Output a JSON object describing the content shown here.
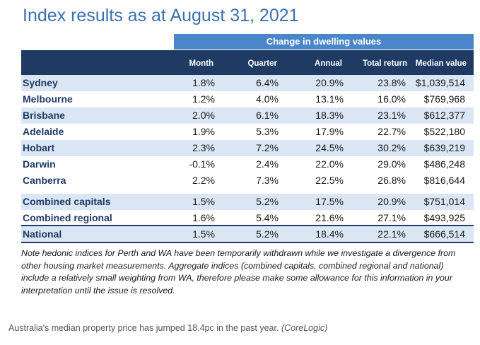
{
  "title": "Index results as at August 31, 2021",
  "group_header": "Change in dwelling values",
  "columns": {
    "month": "Month",
    "quarter": "Quarter",
    "annual": "Annual",
    "total": "Total return",
    "median": "Median value"
  },
  "rows": [
    {
      "name": "Sydney",
      "month": "1.8%",
      "quarter": "6.4%",
      "annual": "20.9%",
      "total": "23.8%",
      "median": "$1,039,514"
    },
    {
      "name": "Melbourne",
      "month": "1.2%",
      "quarter": "4.0%",
      "annual": "13.1%",
      "total": "16.0%",
      "median": "$769,968"
    },
    {
      "name": "Brisbane",
      "month": "2.0%",
      "quarter": "6.1%",
      "annual": "18.3%",
      "total": "23.1%",
      "median": "$612,377"
    },
    {
      "name": "Adelaide",
      "month": "1.9%",
      "quarter": "5.3%",
      "annual": "17.9%",
      "total": "22.7%",
      "median": "$522,180"
    },
    {
      "name": "Hobart",
      "month": "2.3%",
      "quarter": "7.2%",
      "annual": "24.5%",
      "total": "30.2%",
      "median": "$639,219"
    },
    {
      "name": "Darwin",
      "month": "-0.1%",
      "quarter": "2.4%",
      "annual": "22.0%",
      "total": "29.0%",
      "median": "$486,248"
    },
    {
      "name": "Canberra",
      "month": "2.2%",
      "quarter": "7.3%",
      "annual": "22.5%",
      "total": "26.8%",
      "median": "$816,644"
    },
    {
      "name": "Combined capitals",
      "month": "1.5%",
      "quarter": "5.2%",
      "annual": "17.5%",
      "total": "20.9%",
      "median": "$751,014"
    },
    {
      "name": "Combined regional",
      "month": "1.6%",
      "quarter": "5.4%",
      "annual": "21.6%",
      "total": "27.1%",
      "median": "$493,925"
    },
    {
      "name": "National",
      "month": "1.5%",
      "quarter": "5.2%",
      "annual": "18.4%",
      "total": "22.1%",
      "median": "$666,514"
    }
  ],
  "note": "Note hedonic indices for Perth and WA have been temporarily withdrawn while we investigate a divergence from other housing market measurements. Aggregate indices (combined capitals, combined regional and national) include a relatively small weighting from WA, therefore please make some allowance for this information in your interpretation until the issue is resolved.",
  "caption": {
    "text": "Australia's median property price has jumped 18.4pc in the past year.",
    "source": "(CoreLogic)"
  },
  "colors": {
    "title": "#3a6fb0",
    "band_light": "#4a86c8",
    "band_dark": "#1f3b63",
    "row_stripe": "#dbe6f4"
  }
}
